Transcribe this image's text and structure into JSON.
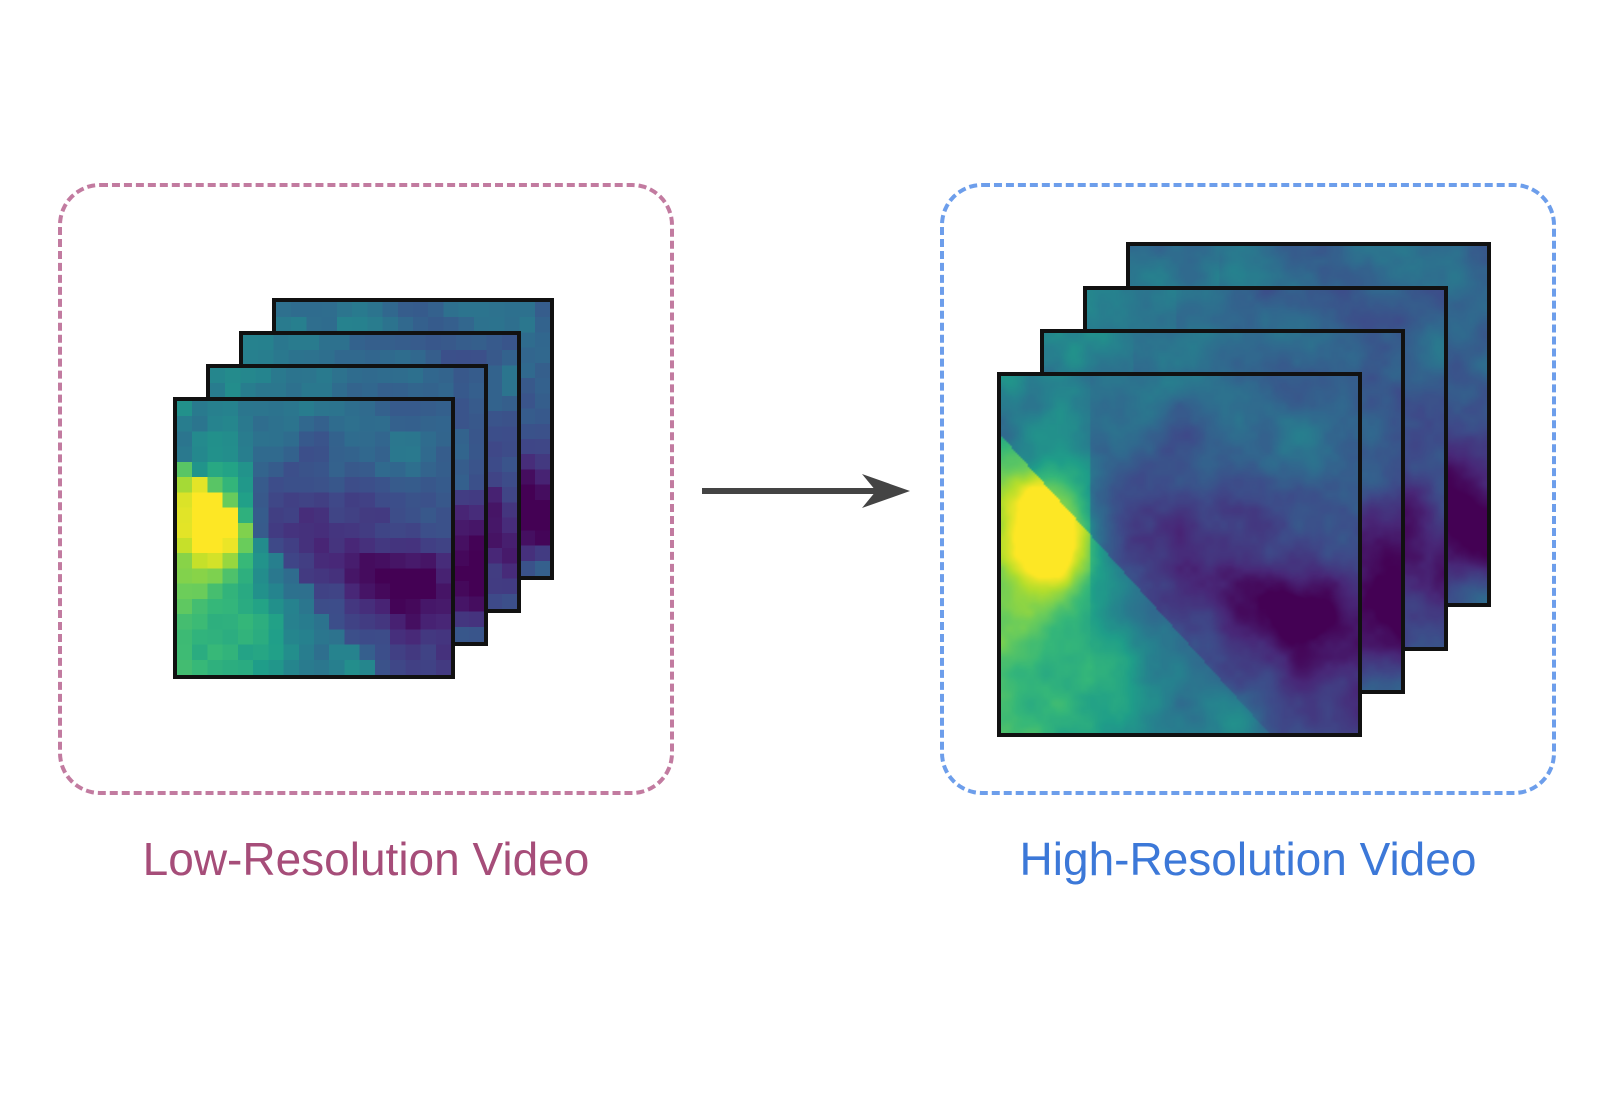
{
  "low_res": {
    "label": "Low-Resolution Video",
    "color": "#a64d79",
    "frame_count": 4
  },
  "high_res": {
    "label": "High-Resolution Video",
    "color": "#3c78d8",
    "frame_count": 4
  },
  "colors": {
    "lr_border": "#c27ba0",
    "hr_border": "#6d9eeb",
    "arrow": "#444444",
    "frame_border": "#111111"
  },
  "colormap": "viridis",
  "arrow_icon": "right-arrow-icon"
}
